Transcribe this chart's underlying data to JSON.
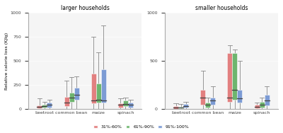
{
  "title_left": "larger households",
  "title_right": "smaller households",
  "ylabel": "Relative calorie loss (KJlg)",
  "categories": [
    "beetroot",
    "common bean",
    "maize",
    "spinach"
  ],
  "legend_labels": [
    "31%-60%",
    "61%-90%",
    "91%-100%"
  ],
  "colors": [
    "#E07070",
    "#5BAD5B",
    "#6B8FD0"
  ],
  "background_color": "#F5F5F5",
  "left": {
    "beetroot": {
      "31-60": {
        "q1": 10,
        "median": 25,
        "q3": 40,
        "whislo": 0,
        "whishi": 110
      },
      "61-90": {
        "q1": 15,
        "median": 30,
        "q3": 50,
        "whislo": 0,
        "whishi": 80
      },
      "91-100": {
        "q1": 20,
        "median": 45,
        "q3": 70,
        "whislo": 0,
        "whishi": 100
      }
    },
    "common bean": {
      "31-60": {
        "q1": 30,
        "median": 70,
        "q3": 130,
        "whislo": 0,
        "whishi": 300
      },
      "61-90": {
        "q1": 80,
        "median": 120,
        "q3": 175,
        "whislo": 0,
        "whishi": 330
      },
      "91-100": {
        "q1": 100,
        "median": 150,
        "q3": 220,
        "whislo": 0,
        "whishi": 340
      }
    },
    "maize": {
      "31-60": {
        "q1": 60,
        "median": 95,
        "q3": 370,
        "whislo": 0,
        "whishi": 750
      },
      "61-90": {
        "q1": 70,
        "median": 100,
        "q3": 265,
        "whislo": 0,
        "whishi": 590
      },
      "91-100": {
        "q1": 70,
        "median": 90,
        "q3": 415,
        "whislo": 0,
        "whishi": 870
      }
    },
    "spinach": {
      "31-60": {
        "q1": 20,
        "median": 45,
        "q3": 65,
        "whislo": 0,
        "whishi": 110
      },
      "61-90": {
        "q1": 30,
        "median": 55,
        "q3": 90,
        "whislo": 0,
        "whishi": 120
      },
      "91-100": {
        "q1": 20,
        "median": 45,
        "q3": 70,
        "whislo": 0,
        "whishi": 100
      }
    }
  },
  "right": {
    "beetroot": {
      "31-60": {
        "q1": 5,
        "median": 15,
        "q3": 30,
        "whislo": 0,
        "whishi": 65
      },
      "61-90": {
        "q1": 8,
        "median": 18,
        "q3": 28,
        "whislo": 0,
        "whishi": 55
      },
      "91-100": {
        "q1": 15,
        "median": 30,
        "q3": 55,
        "whislo": 0,
        "whishi": 80
      }
    },
    "common bean": {
      "31-60": {
        "q1": 50,
        "median": 120,
        "q3": 200,
        "whislo": 0,
        "whishi": 400
      },
      "61-90": {
        "q1": 20,
        "median": 45,
        "q3": 70,
        "whislo": 0,
        "whishi": 120
      },
      "91-100": {
        "q1": 50,
        "median": 90,
        "q3": 120,
        "whislo": 0,
        "whishi": 240
      }
    },
    "maize": {
      "31-60": {
        "q1": 80,
        "median": 120,
        "q3": 580,
        "whislo": 0,
        "whishi": 660
      },
      "61-90": {
        "q1": 100,
        "median": 200,
        "q3": 580,
        "whislo": 0,
        "whishi": 620
      },
      "91-100": {
        "q1": 70,
        "median": 115,
        "q3": 200,
        "whislo": 0,
        "whishi": 500
      }
    },
    "spinach": {
      "31-60": {
        "q1": 10,
        "median": 25,
        "q3": 45,
        "whislo": 0,
        "whishi": 70
      },
      "61-90": {
        "q1": 20,
        "median": 50,
        "q3": 80,
        "whislo": 0,
        "whishi": 120
      },
      "91-100": {
        "q1": 40,
        "median": 90,
        "q3": 150,
        "whislo": 0,
        "whishi": 240
      }
    }
  },
  "ylim_left": [
    0,
    1000
  ],
  "ylim_right": [
    0,
    1000
  ],
  "yticks_left": [
    0,
    250,
    500,
    750,
    1000
  ],
  "yticks_right": [
    0,
    500,
    1000
  ]
}
